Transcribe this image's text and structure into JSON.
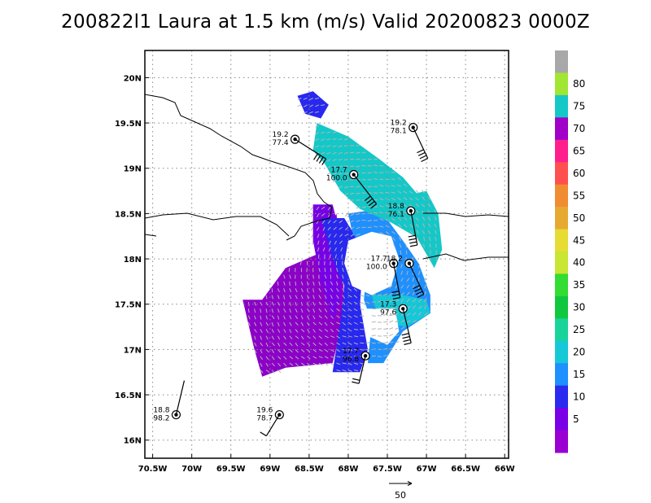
{
  "chart_data": {
    "type": "scatter",
    "title": "200822l1 Laura at 1.5 km (m/s) Valid 20200823 0000Z",
    "x_ticks": [
      "70.5W",
      "70W",
      "69.5W",
      "69W",
      "68.5W",
      "68W",
      "67.5W",
      "67W",
      "66.5W",
      "66W"
    ],
    "y_ticks": [
      "16N",
      "16.5N",
      "17N",
      "17.5N",
      "18N",
      "18.5N",
      "19N",
      "19.5N",
      "20N"
    ],
    "xlim": [
      -70.6,
      -65.95
    ],
    "ylim": [
      15.8,
      20.3
    ],
    "grid": true,
    "colorbar": {
      "labels": [
        "5",
        "10",
        "15",
        "20",
        "25",
        "30",
        "35",
        "40",
        "45",
        "50",
        "55",
        "60",
        "65",
        "70",
        "75",
        "80"
      ],
      "colors": [
        "#9b00d2",
        "#7a00e6",
        "#2b2bf0",
        "#1e90ff",
        "#14c8d8",
        "#19d49a",
        "#10c840",
        "#32dc32",
        "#c8e632",
        "#e6dc32",
        "#e6aa32",
        "#f08c32",
        "#ff5050",
        "#ff1e8c",
        "#a000c8",
        "#14c8c8",
        "#a0e632",
        "#a8a8a8"
      ]
    },
    "reference_vector": "50",
    "stations": [
      {
        "lon": -70.2,
        "lat": 16.28,
        "value_top": "18.8",
        "value_bottom": "98.2",
        "barb_dx": 10,
        "barb_dy": -42,
        "flags": 0
      },
      {
        "lon": -68.88,
        "lat": 16.28,
        "value_top": "19.6",
        "value_bottom": "78.7",
        "barb_dx": -16,
        "barb_dy": 26,
        "flags": 1
      },
      {
        "lon": -68.68,
        "lat": 19.32,
        "value_top": "19.2",
        "value_bottom": "77.4",
        "barb_dx": 38,
        "barb_dy": 24,
        "flags": 4
      },
      {
        "lon": -67.93,
        "lat": 18.93,
        "value_top": "17.7",
        "value_bottom": "100.0",
        "barb_dx": 28,
        "barb_dy": 36,
        "flags": 4
      },
      {
        "lon": -67.17,
        "lat": 19.45,
        "value_top": "19.2",
        "value_bottom": "78.1",
        "barb_dx": 18,
        "barb_dy": 38,
        "flags": 4
      },
      {
        "lon": -67.2,
        "lat": 18.53,
        "value_top": "18.8",
        "value_bottom": "76.1",
        "barb_dx": 8,
        "barb_dy": 42,
        "flags": 4
      },
      {
        "lon": -67.42,
        "lat": 17.95,
        "value_top": "17.7",
        "value_bottom": "100.0",
        "barb_dx": 8,
        "barb_dy": 42,
        "flags": 3
      },
      {
        "lon": -67.22,
        "lat": 17.95,
        "value_top": "18.2",
        "value_bottom": "",
        "barb_dx": 18,
        "barb_dy": 38,
        "flags": 4
      },
      {
        "lon": -67.3,
        "lat": 17.45,
        "value_top": "17.3",
        "value_bottom": "97.6",
        "barb_dx": 10,
        "barb_dy": 42,
        "flags": 4
      },
      {
        "lon": -67.78,
        "lat": 16.93,
        "value_top": "17.7",
        "value_bottom": "96.8",
        "barb_dx": -8,
        "barb_dy": 34,
        "flags": 2
      }
    ],
    "wind_field": [
      {
        "name": "purple-region",
        "color": "#8c00c8",
        "polygon": [
          [
            -69.35,
            17.55
          ],
          [
            -69.1,
            17.55
          ],
          [
            -68.8,
            17.9
          ],
          [
            -68.4,
            18.05
          ],
          [
            -68.25,
            18.35
          ],
          [
            -68.15,
            18.5
          ],
          [
            -68.05,
            17.6
          ],
          [
            -68.1,
            17.2
          ],
          [
            -68.2,
            16.85
          ],
          [
            -68.8,
            16.8
          ],
          [
            -69.1,
            16.7
          ],
          [
            -69.2,
            17.0
          ]
        ]
      },
      {
        "name": "violet-fringe",
        "color": "#7800e6",
        "polygon": [
          [
            -68.45,
            18.6
          ],
          [
            -68.2,
            18.6
          ],
          [
            -68.05,
            18.1
          ],
          [
            -68.1,
            17.55
          ],
          [
            -68.2,
            17.3
          ],
          [
            -68.35,
            17.75
          ],
          [
            -68.45,
            18.2
          ]
        ]
      },
      {
        "name": "blue-region-west",
        "color": "#2828f0",
        "polygon": [
          [
            -68.35,
            18.45
          ],
          [
            -68.05,
            18.45
          ],
          [
            -67.8,
            18.1
          ],
          [
            -67.85,
            17.5
          ],
          [
            -67.75,
            17.0
          ],
          [
            -67.85,
            16.75
          ],
          [
            -68.2,
            16.75
          ],
          [
            -68.1,
            17.3
          ],
          [
            -68.05,
            17.7
          ],
          [
            -68.2,
            18.0
          ]
        ]
      },
      {
        "name": "light-blue-band",
        "color": "#1e90ff",
        "polygon": [
          [
            -68.0,
            18.5
          ],
          [
            -67.6,
            18.55
          ],
          [
            -67.3,
            18.2
          ],
          [
            -67.1,
            17.95
          ],
          [
            -66.95,
            17.6
          ],
          [
            -66.95,
            17.4
          ],
          [
            -67.3,
            17.2
          ],
          [
            -67.55,
            16.85
          ],
          [
            -67.75,
            16.85
          ],
          [
            -67.7,
            17.3
          ],
          [
            -67.8,
            17.55
          ],
          [
            -67.75,
            18.0
          ],
          [
            -67.95,
            18.3
          ]
        ]
      },
      {
        "name": "teal-band-north",
        "color": "#14c8c8",
        "polygon": [
          [
            -68.4,
            19.5
          ],
          [
            -68.0,
            19.35
          ],
          [
            -67.6,
            19.1
          ],
          [
            -67.3,
            18.9
          ],
          [
            -67.0,
            18.6
          ],
          [
            -66.85,
            18.35
          ],
          [
            -66.9,
            18.1
          ],
          [
            -67.15,
            18.25
          ],
          [
            -67.45,
            18.4
          ],
          [
            -67.85,
            18.55
          ],
          [
            -68.1,
            18.75
          ],
          [
            -68.3,
            19.05
          ],
          [
            -68.45,
            19.2
          ]
        ]
      },
      {
        "name": "teal-east-arm",
        "color": "#14c8c8",
        "polygon": [
          [
            -67.25,
            18.7
          ],
          [
            -67.0,
            18.75
          ],
          [
            -66.85,
            18.5
          ],
          [
            -66.8,
            18.1
          ],
          [
            -66.9,
            17.9
          ],
          [
            -67.1,
            18.2
          ]
        ]
      },
      {
        "name": "blue-north-cells",
        "color": "#2828f0",
        "polygon": [
          [
            -68.65,
            19.8
          ],
          [
            -68.45,
            19.85
          ],
          [
            -68.25,
            19.7
          ],
          [
            -68.35,
            19.55
          ],
          [
            -68.55,
            19.6
          ]
        ]
      },
      {
        "name": "teal-south-arm",
        "color": "#14c8d8",
        "polygon": [
          [
            -67.7,
            17.6
          ],
          [
            -67.3,
            17.6
          ],
          [
            -67.0,
            17.55
          ],
          [
            -66.95,
            17.4
          ],
          [
            -67.25,
            17.25
          ],
          [
            -67.6,
            17.3
          ]
        ]
      }
    ],
    "eye_region": [
      [
        -68.0,
        18.2
      ],
      [
        -67.7,
        18.3
      ],
      [
        -67.45,
        18.25
      ],
      [
        -67.35,
        18.0
      ],
      [
        -67.45,
        17.7
      ],
      [
        -67.7,
        17.6
      ],
      [
        -67.95,
        17.7
      ],
      [
        -68.05,
        17.95
      ]
    ],
    "eye_gap_south": [
      [
        -67.8,
        17.45
      ],
      [
        -67.4,
        17.45
      ],
      [
        -67.35,
        17.2
      ],
      [
        -67.5,
        17.05
      ],
      [
        -67.75,
        17.15
      ]
    ]
  }
}
